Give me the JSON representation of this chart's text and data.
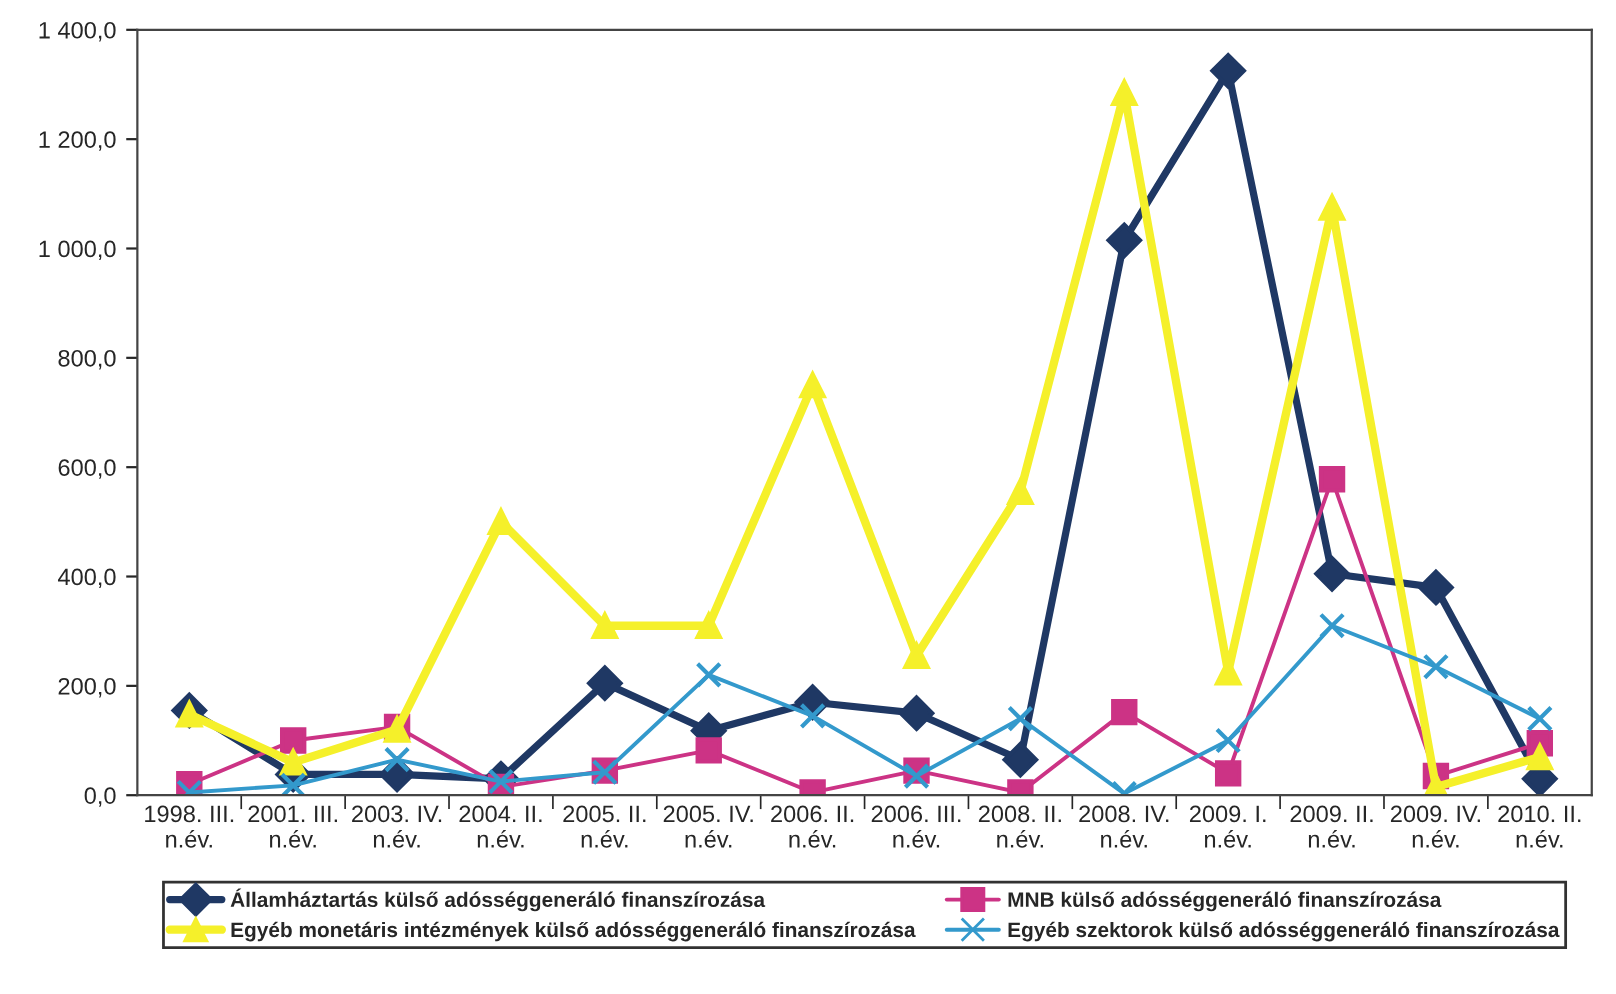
{
  "chart_data": {
    "type": "line",
    "categories": [
      "1998. III.\nn.év.",
      "2001. III.\nn.év.",
      "2003. IV.\nn.év.",
      "2004. II.\nn.év.",
      "2005. II.\nn.év.",
      "2005. IV.\nn.év.",
      "2006. II.\nn.év.",
      "2006. III.\nn.év.",
      "2008. II.\nn.év.",
      "2008. IV.\nn.év.",
      "2009. I.\nn.év.",
      "2009. II.\nn.év.",
      "2009. IV.\nn.év.",
      "2010. II.\nn.év."
    ],
    "series": [
      {
        "name": "Államháztartás külső adósséggeneráló finanszírozása",
        "color": "#1f3864",
        "marker": "diamond",
        "values": [
          155,
          38,
          38,
          30,
          205,
          118,
          170,
          150,
          65,
          1015,
          1325,
          405,
          380,
          30
        ]
      },
      {
        "name": "MNB külső adósséggeneráló finanszírozása",
        "color": "#cc3385",
        "marker": "square",
        "values": [
          20,
          100,
          125,
          15,
          45,
          82,
          5,
          45,
          5,
          152,
          40,
          578,
          35,
          95
        ]
      },
      {
        "name": "Egyéb monetáris intézmények külső adósséggeneráló finanszírozása",
        "color": "#f5f02a",
        "marker": "triangle",
        "values": [
          148,
          60,
          120,
          500,
          310,
          310,
          750,
          255,
          555,
          1285,
          225,
          1075,
          15,
          70
        ]
      },
      {
        "name": "Egyéb szektorok külső adósséggeneráló finanszírozása",
        "color": "#3399cc",
        "marker": "cross",
        "values": [
          5,
          18,
          65,
          25,
          42,
          220,
          145,
          35,
          140,
          3,
          100,
          310,
          235,
          140
        ]
      }
    ],
    "ylim": [
      0,
      1400
    ],
    "yticks": [
      {
        "value": 0,
        "label": "0,0"
      },
      {
        "value": 200,
        "label": "200,0"
      },
      {
        "value": 400,
        "label": "400,0"
      },
      {
        "value": 600,
        "label": "600,0"
      },
      {
        "value": 800,
        "label": "800,0"
      },
      {
        "value": 1000,
        "label": "1 000,0"
      },
      {
        "value": 1200,
        "label": "1 200,0"
      },
      {
        "value": 1400,
        "label": "1 400,0"
      }
    ],
    "grid": false,
    "legend": "bottom",
    "line_style": "solid"
  }
}
